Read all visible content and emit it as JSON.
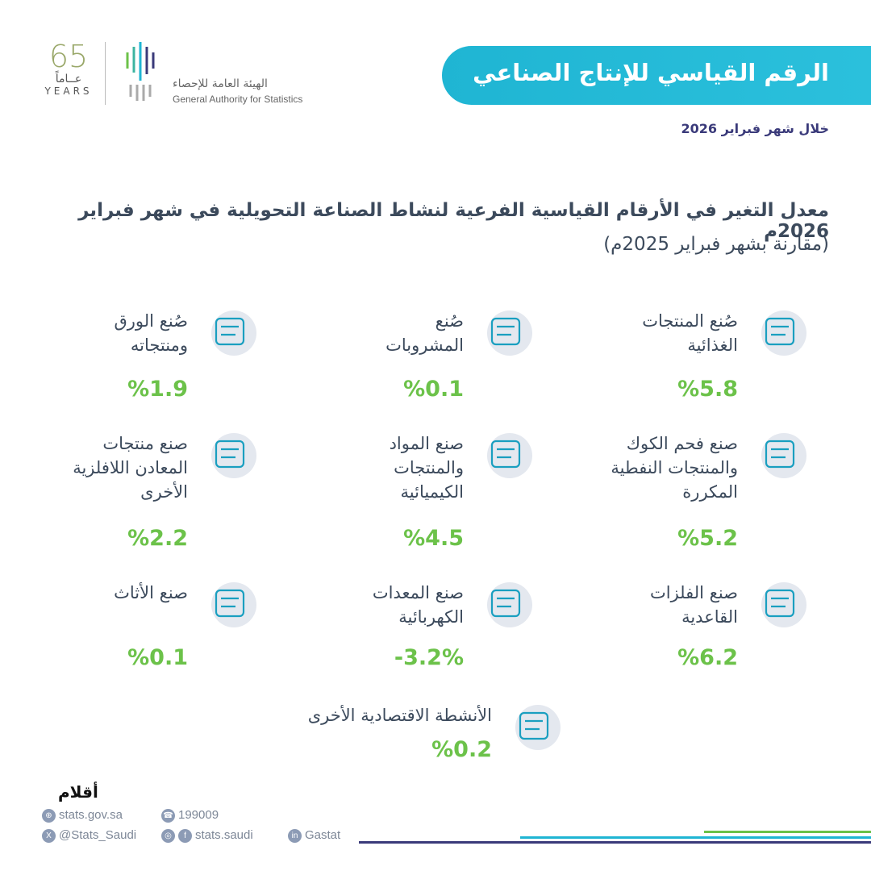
{
  "header": {
    "logo_65": "65",
    "logo_years_ar": "عــاماً",
    "logo_years_en": "YEARS",
    "org_ar": "الهيئة العامة للإحصاء",
    "org_en": "General Authority for Statistics",
    "title": "الرقم القياسي للإنتاج الصناعي",
    "period": "خلال شهر فبراير 2026"
  },
  "heading": {
    "line1": "معدل التغير في الأرقام القياسية الفرعية لنشاط الصناعة التحويلية في شهر فبراير 2026م",
    "line2": "(مقارنة بشهر فبراير 2025م)"
  },
  "items": [
    {
      "label": "صُنع المنتجات\nالغذائية",
      "value": "%5.8",
      "icon": "food-icon"
    },
    {
      "label": "صُنع\nالمشروبات",
      "value": "%0.1",
      "icon": "beverages-icon"
    },
    {
      "label": "صُنع الورق\nومنتجاته",
      "value": "%1.9",
      "icon": "paper-icon"
    },
    {
      "label": "صنع فحم الكوك\nوالمنتجات النفطية\nالمكررة",
      "value": "%5.2",
      "icon": "oil-pump-icon"
    },
    {
      "label": "صنع المواد\nوالمنتجات\nالكيميائية",
      "value": "%4.5",
      "icon": "flask-icon"
    },
    {
      "label": "صنع منتجات\nالمعادن اللافلزية\nالأخرى",
      "value": "%2.2",
      "icon": "roll-icon"
    },
    {
      "label": "صنع الفلزات\nالقاعدية",
      "value": "%6.2",
      "icon": "metal-icon"
    },
    {
      "label": "صنع المعدات\nالكهربائية",
      "value": "-3.2%",
      "icon": "electrical-equipment-icon"
    },
    {
      "label": "صنع الأثاث",
      "value": "%0.1",
      "icon": "furniture-icon"
    },
    {
      "label": "الأنشطة الاقتصادية الأخرى",
      "value": "%0.2",
      "icon": "box-icon"
    }
  ],
  "footer": {
    "website": "stats.gov.sa",
    "phone": "199009",
    "twitter": "@Stats_Saudi",
    "social": "stats.saudi",
    "linkedin": "Gastat",
    "watermark": "أقلام"
  },
  "colors": {
    "accent": "#1fb5d3",
    "value": "#6cc24a",
    "navy": "#3a3a7a"
  }
}
